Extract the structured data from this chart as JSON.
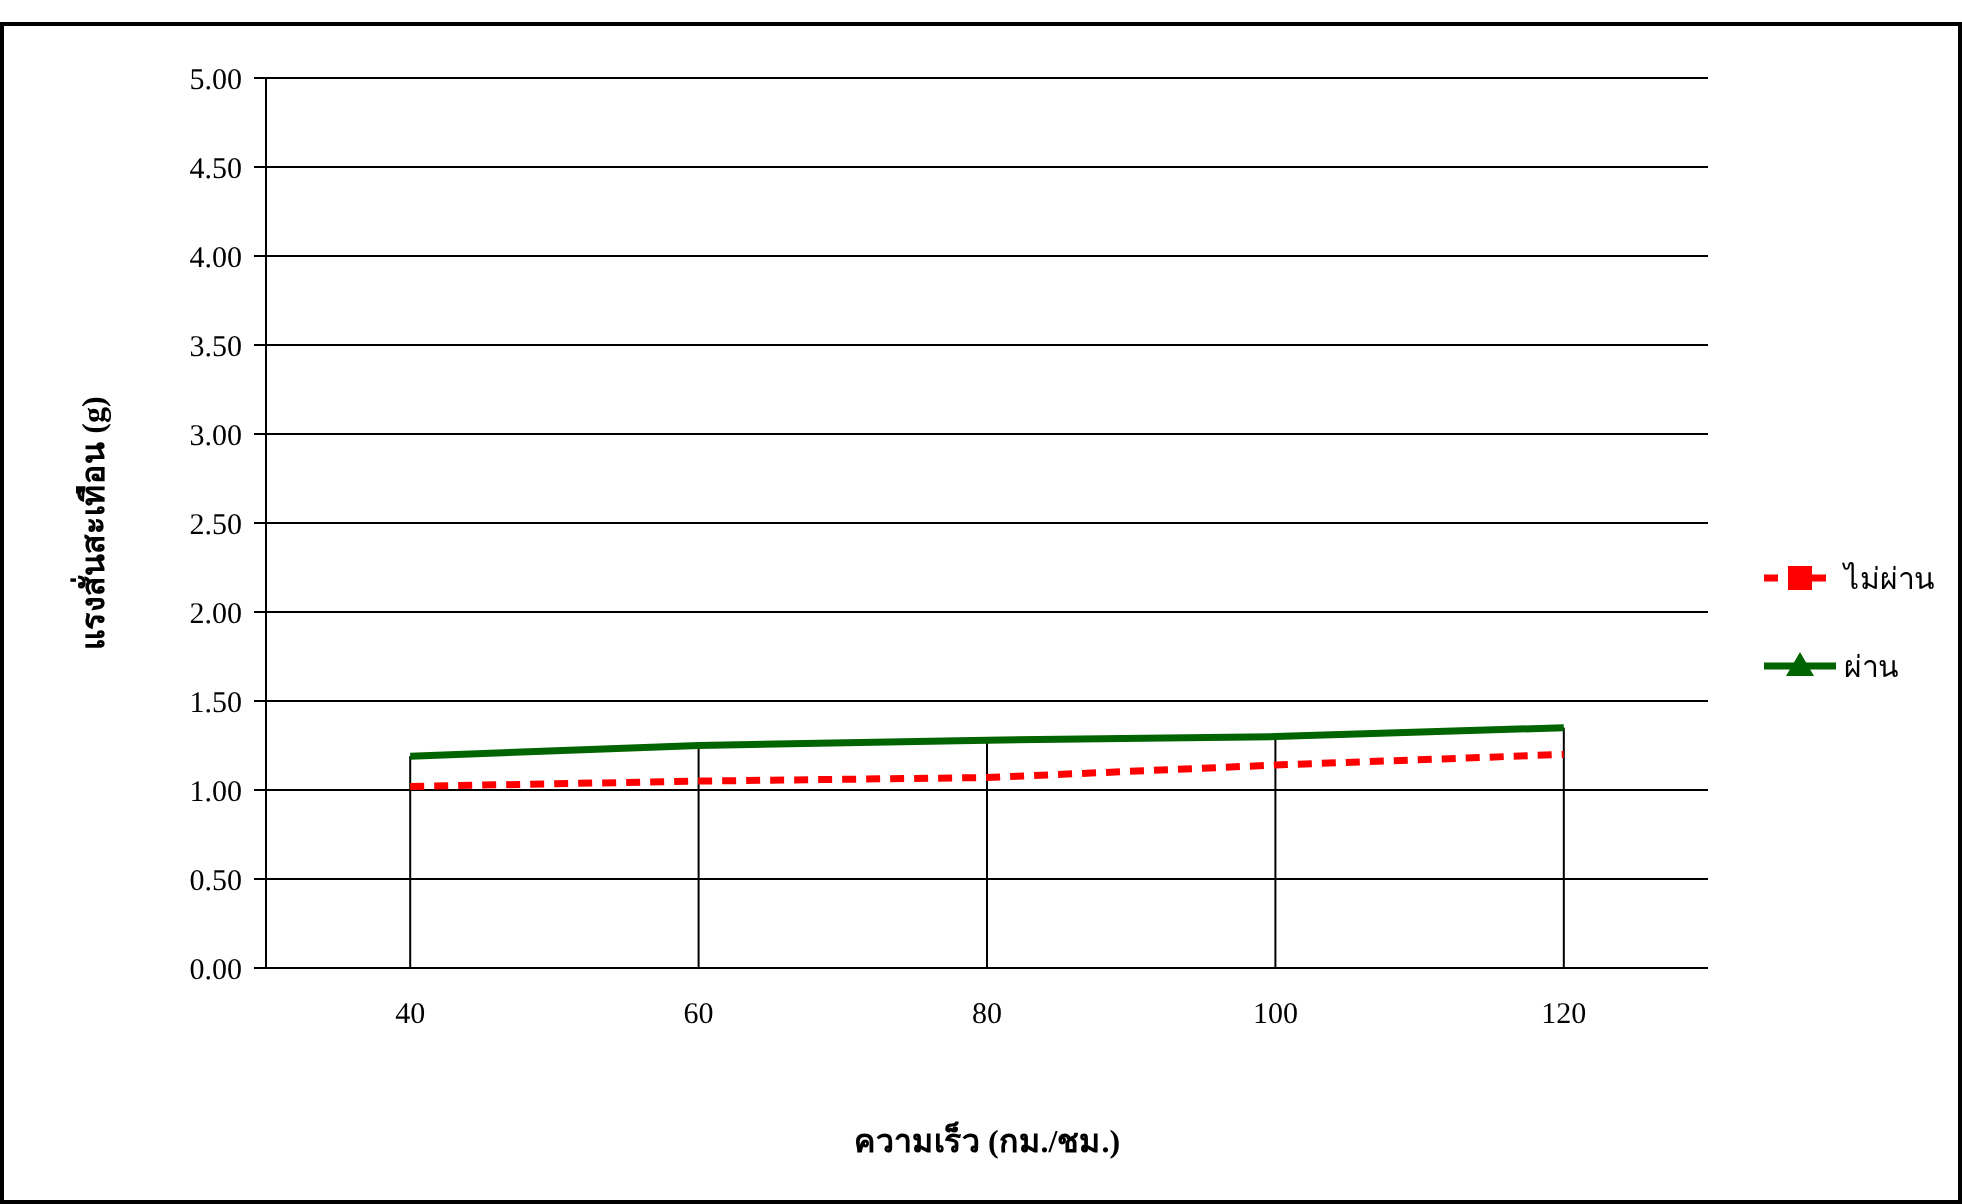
{
  "chart_data": {
    "type": "line",
    "xlabel": "ความเร็ว (กม./ชม.)",
    "ylabel": "แรงสั่นสะเทือน (g)",
    "categories": [
      "40",
      "60",
      "80",
      "100",
      "120"
    ],
    "series": [
      {
        "name": "ไม่ผ่าน",
        "color": "#ff0000",
        "line_style": "dashed",
        "values": [
          1.02,
          1.05,
          1.07,
          1.14,
          1.2
        ]
      },
      {
        "name": "ผ่าน",
        "color": "#006400",
        "line_style": "solid",
        "values": [
          1.19,
          1.25,
          1.28,
          1.3,
          1.35
        ]
      }
    ],
    "ylim": [
      0,
      5
    ],
    "yticks": [
      {
        "value": 0,
        "label": "0.00"
      },
      {
        "value": 0.5,
        "label": "0.50"
      },
      {
        "value": 1,
        "label": "1.00"
      },
      {
        "value": 1.5,
        "label": "1.50"
      },
      {
        "value": 2,
        "label": "2.00"
      },
      {
        "value": 2.5,
        "label": "2.50"
      },
      {
        "value": 3,
        "label": "3.00"
      },
      {
        "value": 3.5,
        "label": "3.50"
      },
      {
        "value": 4,
        "label": "4.00"
      },
      {
        "value": 4.5,
        "label": "4.50"
      },
      {
        "value": 5,
        "label": "5.00"
      }
    ],
    "grid": "y",
    "legend": "right"
  }
}
